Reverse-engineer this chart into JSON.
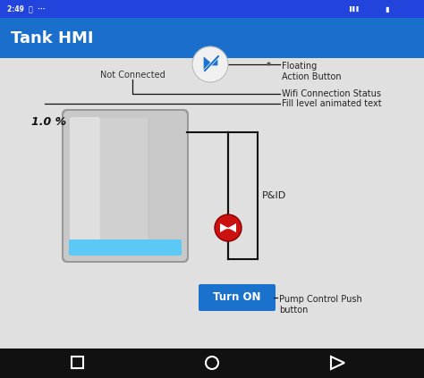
{
  "bg_color": "#d8d8d8",
  "status_bar_color": "#2244dd",
  "app_bar_color": "#1a6fcc",
  "nav_bar_color": "#111111",
  "title_text": "Tank HMI",
  "title_color": "#ffffff",
  "status_time": "2:49",
  "not_connected_text": "Not Connected",
  "fill_text": "1.0 %",
  "pid_label": "P&ID",
  "button_text": "Turn ON",
  "button_color": "#1a72cc",
  "button_text_color": "#ffffff",
  "labels": {
    "floating_action_button": "Floating\nAction Button",
    "wifi_connection_status": "Wifi Connection Status",
    "fill_level_animated_text": "Fill level animated text",
    "pid": "P&ID",
    "pump_control": "Pump Control Push\nbutton"
  },
  "label_color": "#222222",
  "tank_body_top_color": "#b0b0b0",
  "tank_body_mid_color": "#d0d0d0",
  "tank_body_color": "#c4c4c4",
  "tank_highlight_color": "#e8e8e8",
  "tank_bottom_color": "#5bc8f5",
  "pump_color": "#cc1111",
  "fab_bg_color": "#f0f0f0",
  "fab_icon_color": "#1a72cc",
  "line_color": "#111111",
  "content_bg": "#e0e0e0"
}
